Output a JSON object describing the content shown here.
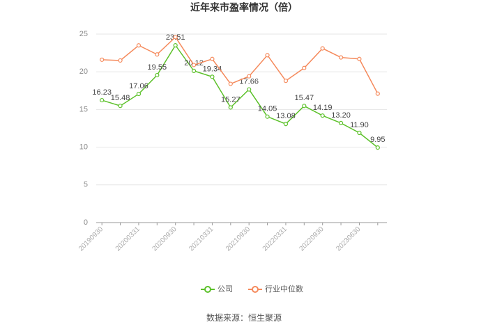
{
  "chart_data": {
    "type": "line",
    "title": "近年来市盈率情况（倍）",
    "categories": [
      "20190930",
      null,
      "20200331",
      null,
      "20200930",
      null,
      "20210331",
      null,
      "20210930",
      null,
      "20220331",
      null,
      "20220930",
      null,
      "20230630",
      null
    ],
    "series": [
      {
        "name": "公司",
        "color": "#5cc12a",
        "values": [
          16.23,
          15.48,
          17.06,
          19.55,
          23.51,
          20.12,
          19.34,
          15.27,
          17.66,
          14.05,
          13.08,
          15.47,
          14.19,
          13.2,
          11.9,
          9.95
        ],
        "value_labels": [
          "16.23",
          "15.48",
          "17.06",
          "19.55",
          "23.51",
          "20.12",
          "19.34",
          "15.27",
          "17.66",
          "14.05",
          "13.08",
          "15.47",
          "14.19",
          "13.20",
          "11.90",
          "9.95"
        ]
      },
      {
        "name": "行业中位数",
        "color": "#f58a5c",
        "values": [
          21.6,
          21.5,
          23.5,
          22.3,
          24.6,
          20.9,
          21.7,
          18.4,
          19.4,
          22.2,
          18.8,
          20.5,
          23.1,
          21.9,
          21.7,
          17.1
        ]
      }
    ],
    "ylim": [
      0,
      25
    ],
    "yticks": [
      0,
      5,
      10,
      15,
      20,
      25
    ],
    "grid": true,
    "legend": "bottom",
    "source": "数据来源：恒生聚源"
  }
}
